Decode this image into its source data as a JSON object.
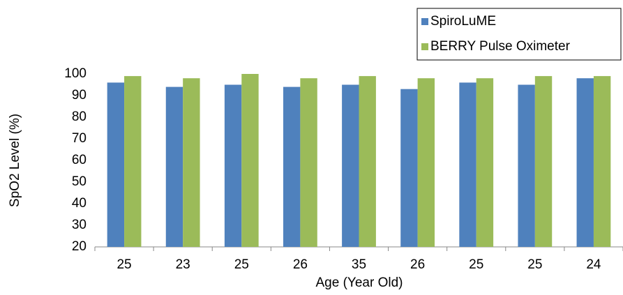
{
  "chart_data": {
    "type": "bar",
    "x_label": "Age (Year Old)",
    "y_label": "SpO2 Level (%)",
    "categories": [
      "25",
      "23",
      "25",
      "26",
      "35",
      "26",
      "25",
      "25",
      "24"
    ],
    "series": [
      {
        "name": "SpiroLuME",
        "color": "#4f81bd",
        "values": [
          96,
          94,
          95,
          94,
          95,
          93,
          96,
          95,
          98
        ]
      },
      {
        "name": "BERRY Pulse Oximeter",
        "color": "#9bbb59",
        "values": [
          99,
          98,
          100,
          98,
          99,
          98,
          98,
          99,
          99
        ]
      }
    ],
    "ylim": [
      20,
      100
    ],
    "yticks": [
      20,
      30,
      40,
      50,
      60,
      70,
      80,
      90,
      100
    ],
    "grid": false,
    "legend": "top-right"
  }
}
